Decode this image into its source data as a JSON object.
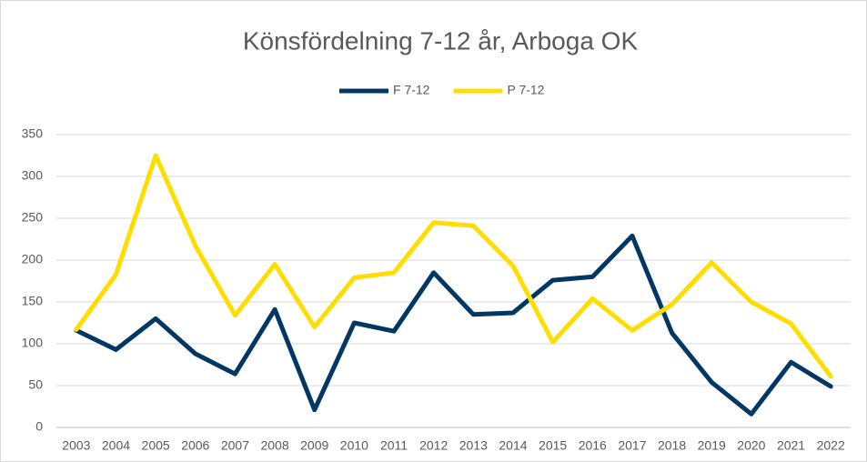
{
  "chart_data": {
    "type": "line",
    "title": "Könsfördelning 7-12 år, Arboga OK",
    "categories": [
      "2003",
      "2004",
      "2005",
      "2006",
      "2007",
      "2008",
      "2009",
      "2010",
      "2011",
      "2012",
      "2013",
      "2014",
      "2015",
      "2016",
      "2017",
      "2018",
      "2019",
      "2020",
      "2021",
      "2022"
    ],
    "series": [
      {
        "name": "F 7-12",
        "color": "#003764",
        "values": [
          116,
          93,
          130,
          88,
          64,
          141,
          21,
          125,
          115,
          185,
          135,
          137,
          176,
          180,
          229,
          113,
          54,
          16,
          78,
          49
        ]
      },
      {
        "name": "P 7-12",
        "color": "#ffdd00",
        "values": [
          117,
          183,
          325,
          217,
          134,
          195,
          120,
          179,
          185,
          245,
          241,
          193,
          102,
          154,
          116,
          147,
          197,
          150,
          124,
          61
        ]
      }
    ],
    "ylim": [
      0,
      350
    ],
    "yticks": [
      0,
      50,
      100,
      150,
      200,
      250,
      300,
      350
    ],
    "grid": true,
    "legend": "top"
  }
}
